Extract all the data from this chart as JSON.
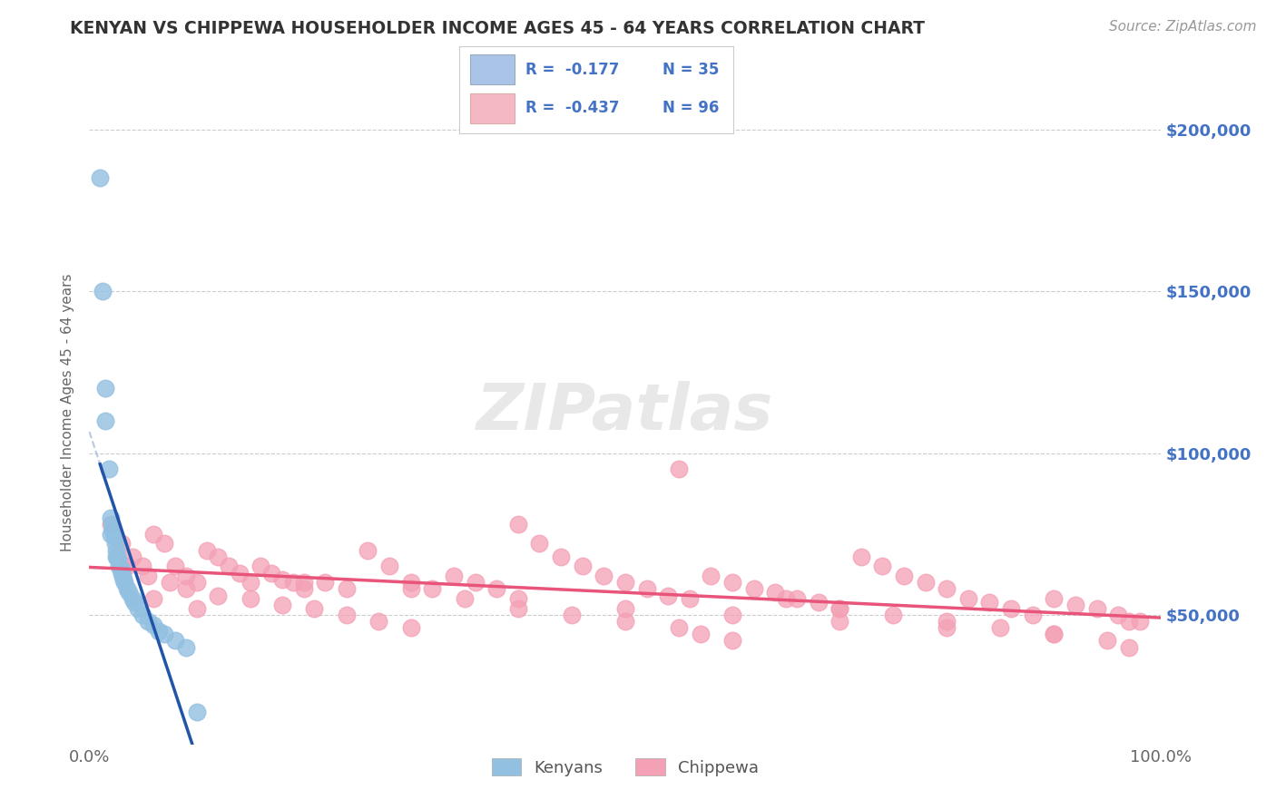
{
  "title": "KENYAN VS CHIPPEWA HOUSEHOLDER INCOME AGES 45 - 64 YEARS CORRELATION CHART",
  "source": "Source: ZipAtlas.com",
  "ylabel": "Householder Income Ages 45 - 64 years",
  "ytick_labels": [
    "$50,000",
    "$100,000",
    "$150,000",
    "$200,000"
  ],
  "ytick_values": [
    50000,
    100000,
    150000,
    200000
  ],
  "xlim": [
    0.0,
    100.0
  ],
  "ylim": [
    10000,
    215000
  ],
  "legend_label1": "Kenyans",
  "legend_label2": "Chippewa",
  "kenyan_color": "#92c0e0",
  "chippewa_color": "#f4a0b5",
  "bg_color": "#ffffff",
  "grid_color": "#cccccc",
  "title_color": "#333333",
  "axis_label_color": "#666666",
  "ytick_color": "#4472c4",
  "trend_blue": "#2255aa",
  "trend_pink": "#e8547a",
  "trend_dash": "#aabbdd",
  "kenyan_x": [
    1.0,
    1.2,
    1.5,
    1.8,
    2.0,
    2.1,
    2.2,
    2.3,
    2.4,
    2.5,
    2.6,
    2.7,
    2.8,
    2.9,
    3.0,
    3.1,
    3.2,
    3.3,
    3.5,
    3.7,
    4.0,
    4.2,
    4.5,
    5.0,
    5.5,
    6.0,
    6.5,
    7.0,
    8.0,
    9.0,
    2.0,
    2.5,
    3.0,
    1.5,
    10.0
  ],
  "kenyan_y": [
    185000,
    150000,
    120000,
    95000,
    80000,
    78000,
    76000,
    74000,
    72000,
    70000,
    68000,
    67000,
    65000,
    64000,
    63000,
    62000,
    61000,
    60000,
    58000,
    57000,
    55000,
    54000,
    52000,
    50000,
    48000,
    47000,
    45000,
    44000,
    42000,
    40000,
    75000,
    68000,
    64000,
    110000,
    20000
  ],
  "chippewa_x": [
    2.0,
    3.0,
    4.0,
    5.0,
    6.0,
    7.0,
    8.0,
    9.0,
    10.0,
    11.0,
    12.0,
    13.0,
    14.0,
    15.0,
    16.0,
    17.0,
    18.0,
    19.0,
    20.0,
    22.0,
    24.0,
    26.0,
    28.0,
    30.0,
    32.0,
    34.0,
    36.0,
    38.0,
    40.0,
    42.0,
    44.0,
    46.0,
    48.0,
    50.0,
    52.0,
    54.0,
    56.0,
    58.0,
    60.0,
    62.0,
    64.0,
    66.0,
    68.0,
    70.0,
    72.0,
    74.0,
    76.0,
    78.0,
    80.0,
    82.0,
    84.0,
    86.0,
    88.0,
    90.0,
    92.0,
    94.0,
    96.0,
    98.0,
    3.5,
    5.5,
    7.5,
    9.0,
    12.0,
    15.0,
    18.0,
    21.0,
    24.0,
    27.0,
    30.0,
    35.0,
    40.0,
    45.0,
    50.0,
    55.0,
    57.0,
    60.0,
    65.0,
    70.0,
    75.0,
    80.0,
    85.0,
    90.0,
    95.0,
    97.0,
    6.0,
    10.0,
    20.0,
    30.0,
    40.0,
    50.0,
    60.0,
    70.0,
    80.0,
    90.0,
    55.0,
    97.0
  ],
  "chippewa_y": [
    78000,
    72000,
    68000,
    65000,
    75000,
    72000,
    65000,
    62000,
    60000,
    70000,
    68000,
    65000,
    63000,
    60000,
    65000,
    63000,
    61000,
    60000,
    58000,
    60000,
    58000,
    70000,
    65000,
    60000,
    58000,
    62000,
    60000,
    58000,
    78000,
    72000,
    68000,
    65000,
    62000,
    60000,
    58000,
    56000,
    55000,
    62000,
    60000,
    58000,
    57000,
    55000,
    54000,
    52000,
    68000,
    65000,
    62000,
    60000,
    58000,
    55000,
    54000,
    52000,
    50000,
    55000,
    53000,
    52000,
    50000,
    48000,
    65000,
    62000,
    60000,
    58000,
    56000,
    55000,
    53000,
    52000,
    50000,
    48000,
    46000,
    55000,
    52000,
    50000,
    48000,
    46000,
    44000,
    42000,
    55000,
    52000,
    50000,
    48000,
    46000,
    44000,
    42000,
    40000,
    55000,
    52000,
    60000,
    58000,
    55000,
    52000,
    50000,
    48000,
    46000,
    44000,
    95000,
    48000
  ],
  "watermark": "ZIPatlas"
}
